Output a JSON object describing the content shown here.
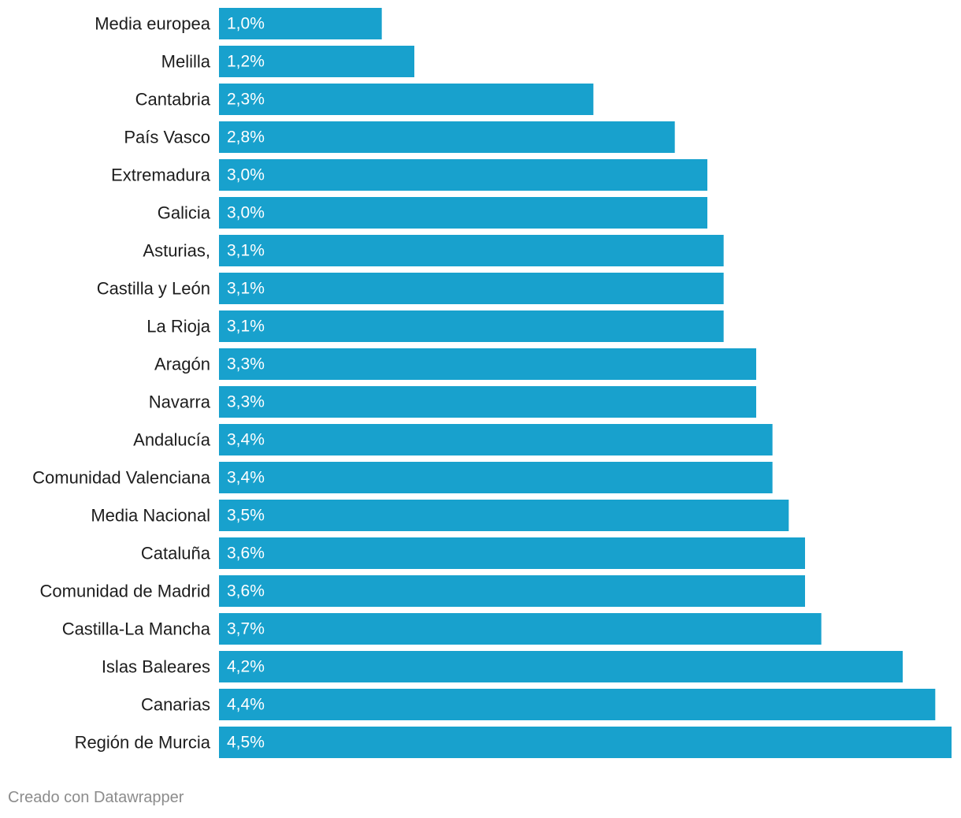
{
  "chart_data": {
    "type": "bar",
    "orientation": "horizontal",
    "categories": [
      "Media europea",
      "Melilla",
      "Cantabria",
      "País Vasco",
      "Extremadura",
      "Galicia",
      "Asturias,",
      "Castilla y León",
      "La Rioja",
      "Aragón",
      "Navarra",
      "Andalucía",
      "Comunidad Valenciana",
      "Media Nacional",
      "Cataluña",
      "Comunidad de Madrid",
      "Castilla-La Mancha",
      "Islas Baleares",
      "Canarias",
      "Región de Murcia"
    ],
    "values": [
      1.0,
      1.2,
      2.3,
      2.8,
      3.0,
      3.0,
      3.1,
      3.1,
      3.1,
      3.3,
      3.3,
      3.4,
      3.4,
      3.5,
      3.6,
      3.6,
      3.7,
      4.2,
      4.4,
      4.5
    ],
    "value_labels": [
      "1,0%",
      "1,2%",
      "2,3%",
      "2,8%",
      "3,0%",
      "3,0%",
      "3,1%",
      "3,1%",
      "3,1%",
      "3,3%",
      "3,3%",
      "3,4%",
      "3,4%",
      "3,5%",
      "3,6%",
      "3,6%",
      "3,7%",
      "4,2%",
      "4,4%",
      "4,5%"
    ],
    "xlim": [
      0,
      4.5
    ],
    "grid": false,
    "legend": "none",
    "bar_color": "#18a1cd",
    "value_label_color": "#ffffff",
    "category_label_color": "#1d1d1d"
  },
  "footer": {
    "credit": "Creado con Datawrapper"
  }
}
